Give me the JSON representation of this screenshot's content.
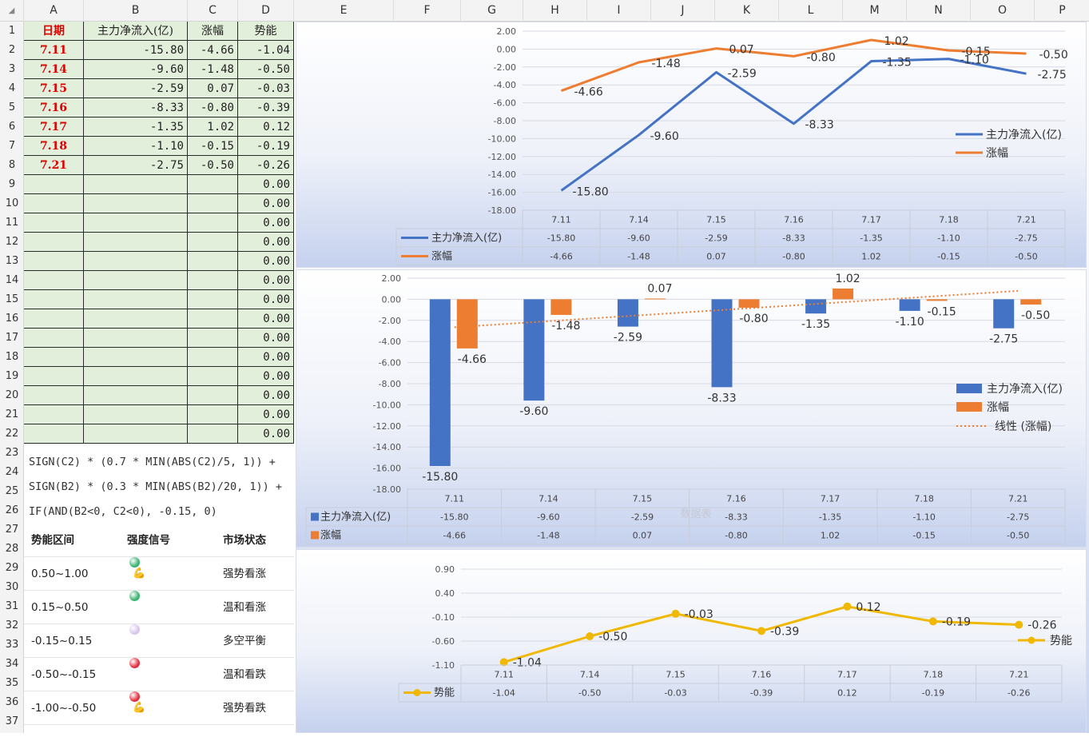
{
  "columns": [
    "A",
    "B",
    "C",
    "D",
    "E",
    "F",
    "G",
    "H",
    "I",
    "J",
    "K",
    "L",
    "M",
    "N",
    "O",
    "P"
  ],
  "rows": [
    "1",
    "2",
    "3",
    "4",
    "5",
    "6",
    "7",
    "8",
    "9",
    "10",
    "11",
    "12",
    "13",
    "14",
    "15",
    "16",
    "17",
    "18",
    "19",
    "20",
    "21",
    "22",
    "23",
    "24",
    "25",
    "26",
    "27",
    "28",
    "29",
    "30",
    "31",
    "32",
    "33",
    "34",
    "35",
    "36",
    "37"
  ],
  "table": {
    "headers": [
      "日期",
      "主力净流入(亿)",
      "涨幅",
      "势能"
    ],
    "rows": [
      [
        "7.11",
        "-15.80",
        "-4.66",
        "-1.04"
      ],
      [
        "7.14",
        "-9.60",
        "-1.48",
        "-0.50"
      ],
      [
        "7.15",
        "-2.59",
        "0.07",
        "-0.03"
      ],
      [
        "7.16",
        "-8.33",
        "-0.80",
        "-0.39"
      ],
      [
        "7.17",
        "-1.35",
        "1.02",
        "0.12"
      ],
      [
        "7.18",
        "-1.10",
        "-0.15",
        "-0.19"
      ],
      [
        "7.21",
        "-2.75",
        "-0.50",
        "-0.26"
      ],
      [
        "",
        "",
        "",
        "0.00"
      ],
      [
        "",
        "",
        "",
        "0.00"
      ],
      [
        "",
        "",
        "",
        "0.00"
      ],
      [
        "",
        "",
        "",
        "0.00"
      ],
      [
        "",
        "",
        "",
        "0.00"
      ],
      [
        "",
        "",
        "",
        "0.00"
      ],
      [
        "",
        "",
        "",
        "0.00"
      ],
      [
        "",
        "",
        "",
        "0.00"
      ],
      [
        "",
        "",
        "",
        "0.00"
      ],
      [
        "",
        "",
        "",
        "0.00"
      ],
      [
        "",
        "",
        "",
        "0.00"
      ],
      [
        "",
        "",
        "",
        "0.00"
      ],
      [
        "",
        "",
        "",
        "0.00"
      ],
      [
        "",
        "",
        "",
        "0.00"
      ]
    ]
  },
  "formula": [
    "SIGN(C2) * (0.7 * MIN(ABS(C2)/5, 1)) +",
    "SIGN(B2) * (0.3 * MIN(ABS(B2)/20, 1)) +",
    "IF(AND(B2<0, C2<0), -0.15, 0)"
  ],
  "legend_table": {
    "headers": [
      "势能区间",
      "强度信号",
      "市场状态"
    ],
    "rows": [
      {
        "range": "0.50~1.00",
        "color": "#3cb371",
        "strong": true,
        "state": "强势看涨"
      },
      {
        "range": "0.15~0.50",
        "color": "#3cb371",
        "strong": false,
        "state": "温和看涨"
      },
      {
        "range": "-0.15~0.15",
        "color": "#d7c6ec",
        "strong": false,
        "state": "多空平衡"
      },
      {
        "range": "-0.50~-0.15",
        "color": "#e03040",
        "strong": false,
        "state": "温和看跌"
      },
      {
        "range": "-1.00~-0.50",
        "color": "#e03040",
        "strong": true,
        "state": "强势看跌"
      }
    ]
  },
  "colors": {
    "blue": "#4472c4",
    "orange": "#ed7d31",
    "gold": "#f0b800"
  },
  "chart_data": [
    {
      "type": "line",
      "categories": [
        "7.11",
        "7.14",
        "7.15",
        "7.16",
        "7.17",
        "7.18",
        "7.21"
      ],
      "series": [
        {
          "name": "主力净流入(亿)",
          "values": [
            -15.8,
            -9.6,
            -2.59,
            -8.33,
            -1.35,
            -1.1,
            -2.75
          ],
          "color": "#4472c4"
        },
        {
          "name": "涨幅",
          "values": [
            -4.66,
            -1.48,
            0.07,
            -0.8,
            1.02,
            -0.15,
            -0.5
          ],
          "color": "#ed7d31"
        }
      ],
      "ylim": [
        -18,
        2
      ],
      "yticks": [
        "2.00",
        "0.00",
        "-2.00",
        "-4.00",
        "-6.00",
        "-8.00",
        "-10.00",
        "-12.00",
        "-14.00",
        "-16.00",
        "-18.00"
      ],
      "legend": "right",
      "data_table": true
    },
    {
      "type": "bar",
      "categories": [
        "7.11",
        "7.14",
        "7.15",
        "7.16",
        "7.17",
        "7.18",
        "7.21"
      ],
      "series": [
        {
          "name": "主力净流入(亿)",
          "values": [
            -15.8,
            -9.6,
            -2.59,
            -8.33,
            -1.35,
            -1.1,
            -2.75
          ],
          "color": "#4472c4"
        },
        {
          "name": "涨幅",
          "values": [
            -4.66,
            -1.48,
            0.07,
            -0.8,
            1.02,
            -0.15,
            -0.5
          ],
          "color": "#ed7d31"
        }
      ],
      "trendline": {
        "name": "线性 (涨幅)",
        "series": "涨幅"
      },
      "ylim": [
        -18,
        2
      ],
      "yticks": [
        "2.00",
        "0.00",
        "-2.00",
        "-4.00",
        "-6.00",
        "-8.00",
        "-10.00",
        "-12.00",
        "-14.00",
        "-16.00",
        "-18.00"
      ],
      "legend": "right",
      "data_table": true,
      "watermark": "数据表"
    },
    {
      "type": "line",
      "categories": [
        "7.11",
        "7.14",
        "7.15",
        "7.16",
        "7.17",
        "7.18",
        "7.21"
      ],
      "series": [
        {
          "name": "势能",
          "values": [
            -1.04,
            -0.5,
            -0.03,
            -0.39,
            0.12,
            -0.19,
            -0.26
          ],
          "color": "#f0b800"
        }
      ],
      "ylim": [
        -1.1,
        0.9
      ],
      "yticks": [
        "0.90",
        "0.40",
        "-0.10",
        "-0.60",
        "-1.10"
      ],
      "legend": "right",
      "data_table": true
    }
  ]
}
